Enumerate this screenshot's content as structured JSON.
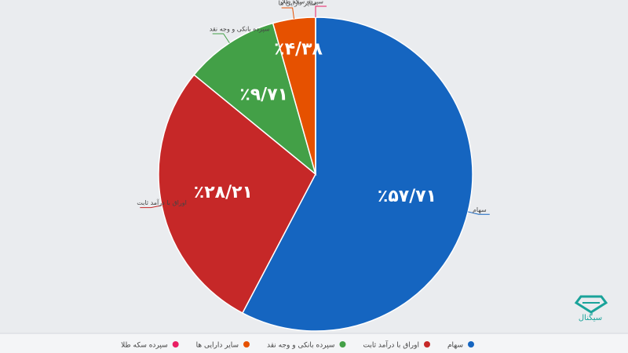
{
  "chart_data": {
    "type": "pie",
    "categories": [
      "سهام",
      "اوراق با درآمد ثابت",
      "سپرده بانکی و وجه نقد",
      "سایر دارایی ها",
      "سپرده سکه طلا"
    ],
    "values": [
      57.71,
      28.21,
      9.71,
      4.38,
      0
    ],
    "value_labels": [
      "٪۵۷/۷۱",
      "٪۲۸/۲۱",
      "٪۹/۷۱",
      "٪۴/۳۸",
      null
    ],
    "colors": [
      "#1565c0",
      "#c62828",
      "#43a047",
      "#e65100",
      "#e91e63"
    ],
    "logo": "سیگنال"
  }
}
